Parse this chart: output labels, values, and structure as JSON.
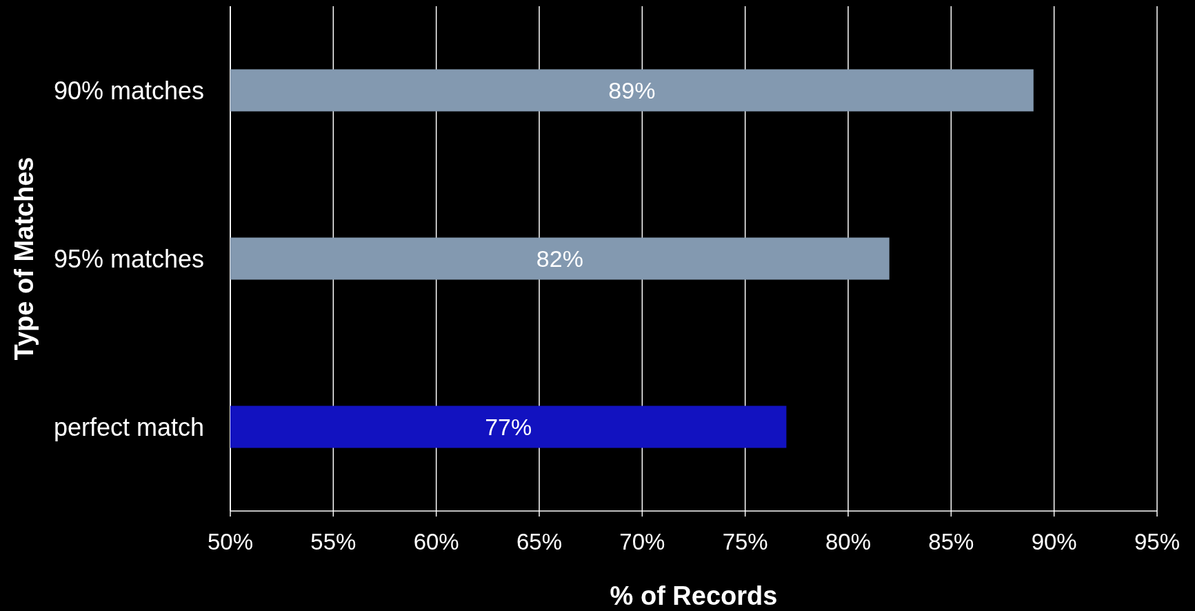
{
  "chart_data": {
    "type": "bar",
    "orientation": "horizontal",
    "xlabel": "% of Records",
    "ylabel": "Type of Matches",
    "categories": [
      "90% matches",
      "95% matches",
      "perfect match"
    ],
    "values": [
      89,
      82,
      77
    ],
    "colors": [
      "#8399b0",
      "#8399b0",
      "#1212c0"
    ],
    "xlim": [
      50,
      95
    ],
    "xticks": [
      {
        "value": 50,
        "label": "50%"
      },
      {
        "value": 55,
        "label": "55%"
      },
      {
        "value": 60,
        "label": "60%"
      },
      {
        "value": 65,
        "label": "65%"
      },
      {
        "value": 70,
        "label": "70%"
      },
      {
        "value": 75,
        "label": "75%"
      },
      {
        "value": 80,
        "label": "80%"
      },
      {
        "value": 85,
        "label": "85%"
      },
      {
        "value": 90,
        "label": "90%"
      },
      {
        "value": 95,
        "label": "95%"
      }
    ],
    "value_labels": [
      "89%",
      "82%",
      "77%"
    ],
    "grid": "x"
  }
}
